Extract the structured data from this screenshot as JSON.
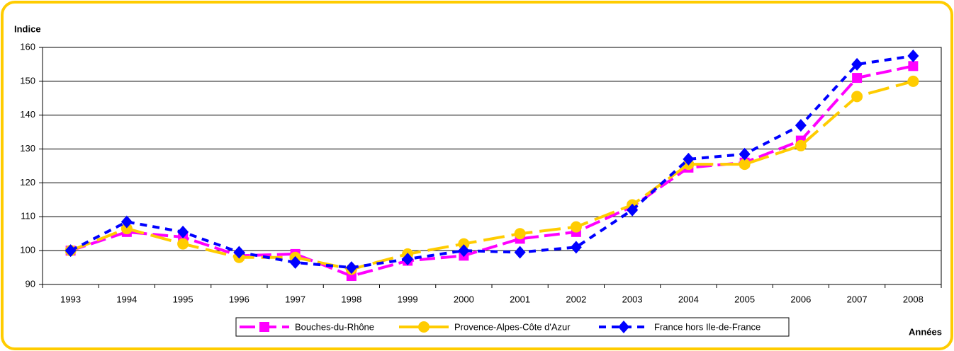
{
  "chart_data": {
    "type": "line",
    "y_label": "Indice",
    "x_label": "Années",
    "categories": [
      "1993",
      "1994",
      "1995",
      "1996",
      "1997",
      "1998",
      "1999",
      "2000",
      "2001",
      "2002",
      "2003",
      "2004",
      "2005",
      "2006",
      "2007",
      "2008"
    ],
    "series": [
      {
        "name": "Bouches-du-Rhône",
        "color": "#ff00ff",
        "marker": "square",
        "dash": "22 8",
        "values": [
          100,
          105.5,
          104,
          98.5,
          99,
          92.5,
          97,
          98.5,
          103.5,
          105.5,
          113,
          124.5,
          126,
          132.5,
          151,
          154.5
        ]
      },
      {
        "name": "Provence-Alpes-Côte d'Azur",
        "color": "#ffcc00",
        "marker": "circle",
        "dash": "30 10",
        "values": [
          100,
          106.5,
          102,
          98,
          98,
          94.5,
          99,
          102,
          105,
          107,
          113.5,
          125.5,
          125.5,
          131,
          145.5,
          150
        ]
      },
      {
        "name": "France hors Ile-de-France",
        "color": "#0000ff",
        "marker": "diamond",
        "dash": "10 8",
        "values": [
          100,
          108.5,
          105.5,
          99.5,
          96.5,
          95,
          97.5,
          100,
          99.5,
          101,
          112,
          127,
          128.5,
          137,
          155,
          157.5
        ]
      }
    ],
    "ylim": [
      90,
      160
    ],
    "yticks": [
      90,
      100,
      110,
      120,
      130,
      140,
      150,
      160
    ],
    "grid": true
  }
}
